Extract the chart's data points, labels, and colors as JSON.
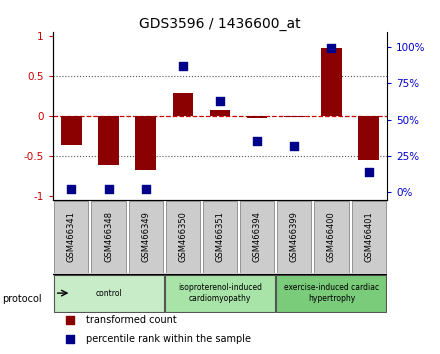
{
  "title": "GDS3596 / 1436600_at",
  "samples": [
    "GSM466341",
    "GSM466348",
    "GSM466349",
    "GSM466350",
    "GSM466351",
    "GSM466394",
    "GSM466399",
    "GSM466400",
    "GSM466401"
  ],
  "transformed_count": [
    -0.37,
    -0.62,
    -0.68,
    0.28,
    0.07,
    -0.03,
    -0.02,
    0.85,
    -0.55
  ],
  "percentile_rank": [
    2,
    2,
    2,
    87,
    63,
    35,
    32,
    99,
    14
  ],
  "bar_color": "#8B0000",
  "dot_color": "#00008B",
  "zero_line_color": "#CC0000",
  "dotted_line_color": "#555555",
  "ylim_left": [
    -1.05,
    1.05
  ],
  "ylim_right": [
    -5.25,
    110.25
  ],
  "yticks_left": [
    -1,
    -0.5,
    0,
    0.5,
    1
  ],
  "yticks_right": [
    0,
    25,
    50,
    75,
    100
  ],
  "ytick_labels_left": [
    "-1",
    "-0.5",
    "0",
    "0.5",
    "1"
  ],
  "ytick_labels_right": [
    "0%",
    "25%",
    "50%",
    "75%",
    "100%"
  ],
  "groups": [
    {
      "label": "control",
      "start": 0,
      "end": 3,
      "color": "#c8ecc8"
    },
    {
      "label": "isoproterenol-induced\ncardiomyopathy",
      "start": 3,
      "end": 6,
      "color": "#a8e4a8"
    },
    {
      "label": "exercise-induced cardiac\nhypertrophy",
      "start": 6,
      "end": 9,
      "color": "#7acc7a"
    }
  ],
  "protocol_label": "protocol",
  "legend_red": "transformed count",
  "legend_blue": "percentile rank within the sample",
  "bar_width": 0.55,
  "dot_size": 35,
  "background_color": "#ffffff",
  "plot_bg_color": "#ffffff",
  "axis_label_color_left": "#CC0000",
  "axis_label_color_right": "#0000CC",
  "sample_box_color": "#cccccc",
  "sample_box_edge": "#888888"
}
